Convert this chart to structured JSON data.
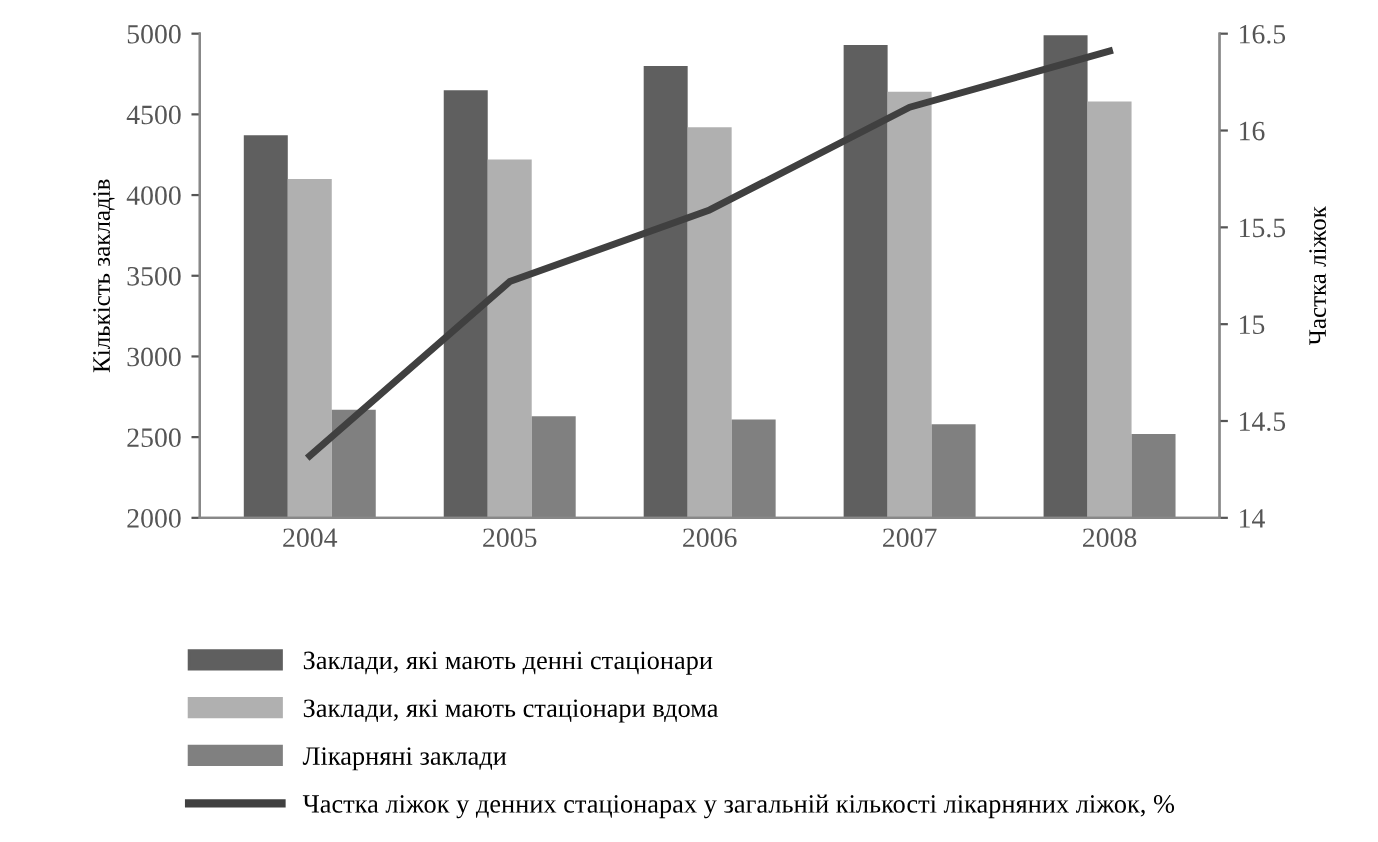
{
  "chart_data": {
    "type": "bar",
    "ylabel": "Кількість закладів",
    "y2label": "Частка ліжок",
    "categories": [
      "2004",
      "2005",
      "2006",
      "2007",
      "2008"
    ],
    "series": [
      {
        "name": "Заклади, які мають денні стаціонари",
        "color": "#5f5f5f",
        "values": [
          4370,
          4650,
          4800,
          4930,
          4990
        ]
      },
      {
        "name": "Заклади, які мають стаціонари вдома",
        "color": "#b0b0b0",
        "values": [
          4100,
          4220,
          4420,
          4640,
          4580
        ]
      },
      {
        "name": "Лікарняні заклади",
        "color": "#808080",
        "values": [
          2670,
          2630,
          2610,
          2580,
          2520
        ]
      },
      {
        "name": "Частка ліжок у денних стаціонарах у загальній кількості лікарняних ліжок, %",
        "type": "line",
        "axis": "y2",
        "color": "#404040",
        "values": [
          14.32,
          15.22,
          15.59,
          16.12,
          16.41
        ]
      }
    ],
    "ylim": [
      2000,
      5000
    ],
    "yticks": [
      2000,
      2500,
      3000,
      3500,
      4000,
      4500,
      5000
    ],
    "y2lim": [
      14,
      16.5
    ],
    "y2ticks": [
      14,
      14.5,
      15,
      15.5,
      16,
      16.5
    ],
    "grid": false,
    "legend": "bottom",
    "marker": "none"
  }
}
